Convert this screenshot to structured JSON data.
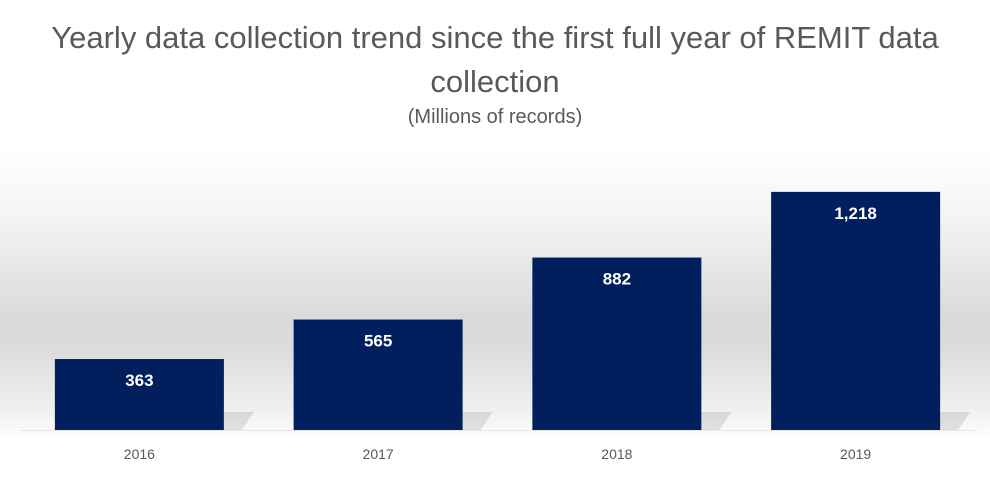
{
  "chart_data": {
    "type": "bar",
    "title": "Yearly data collection trend since the first full year of REMIT data collection",
    "subtitle": "(Millions of records)",
    "categories": [
      "2016",
      "2017",
      "2018",
      "2019"
    ],
    "values": [
      363,
      565,
      882,
      1218
    ],
    "value_labels": [
      "363",
      "565",
      "882",
      "1,218"
    ],
    "xlabel": "",
    "ylabel": "",
    "ylim": [
      0,
      1500
    ],
    "grid": false,
    "legend": "none",
    "bar_color": "#001f5c",
    "label_color": "#ffffff"
  }
}
